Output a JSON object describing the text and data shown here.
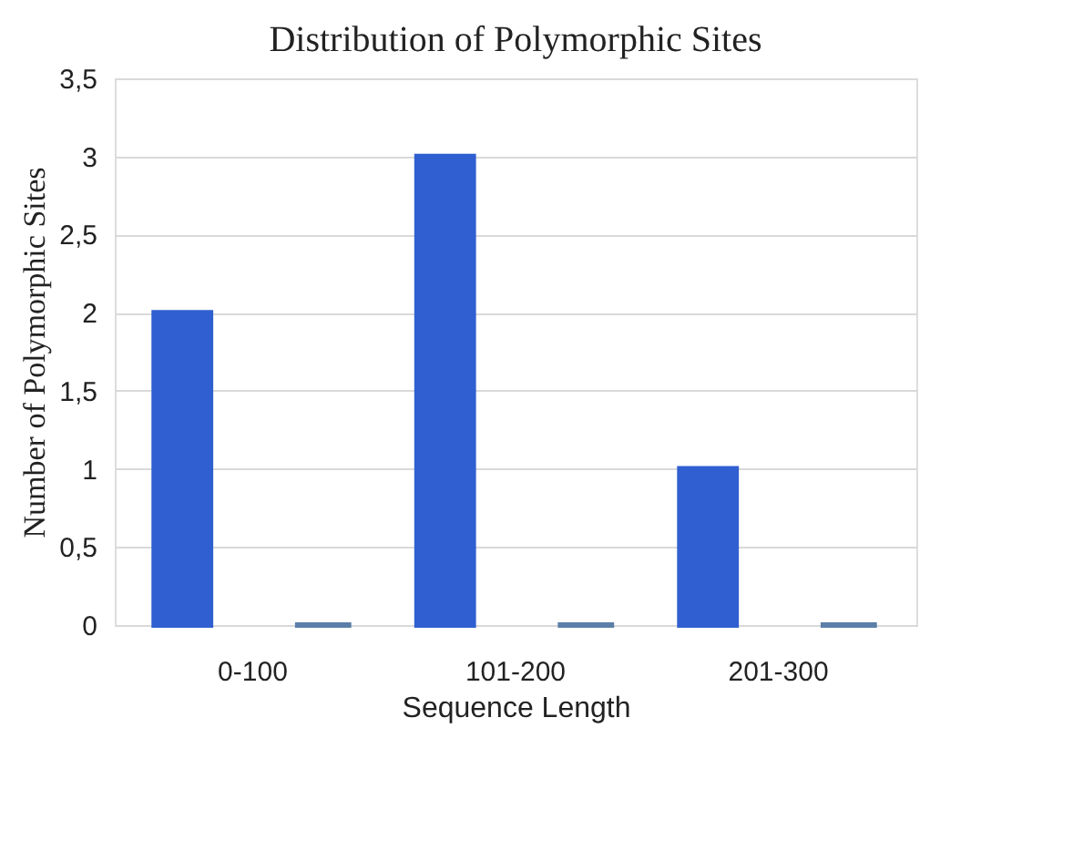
{
  "chart_data": {
    "type": "bar",
    "title": "Distribution of Polymorphic Sites",
    "xlabel": "Sequence Length",
    "ylabel": "Number of Polymorphic Sites",
    "categories": [
      "0-100",
      "101-200",
      "201-300"
    ],
    "series": [
      {
        "color": "#2f5fd0",
        "values": [
          2,
          3,
          1
        ]
      },
      {
        "color": "#5b7fa8",
        "values": [
          0,
          0,
          0
        ]
      }
    ],
    "ylim": [
      0,
      3.5
    ],
    "yticks": [
      0,
      {
        "value": 0.5,
        "label": "0,5"
      },
      1,
      {
        "value": 1.5,
        "label": "1,5"
      },
      2,
      {
        "value": 2.5,
        "label": "2,5"
      },
      3,
      {
        "value": 3.5,
        "label": "3,5"
      }
    ],
    "grid": "y",
    "legend": false
  }
}
